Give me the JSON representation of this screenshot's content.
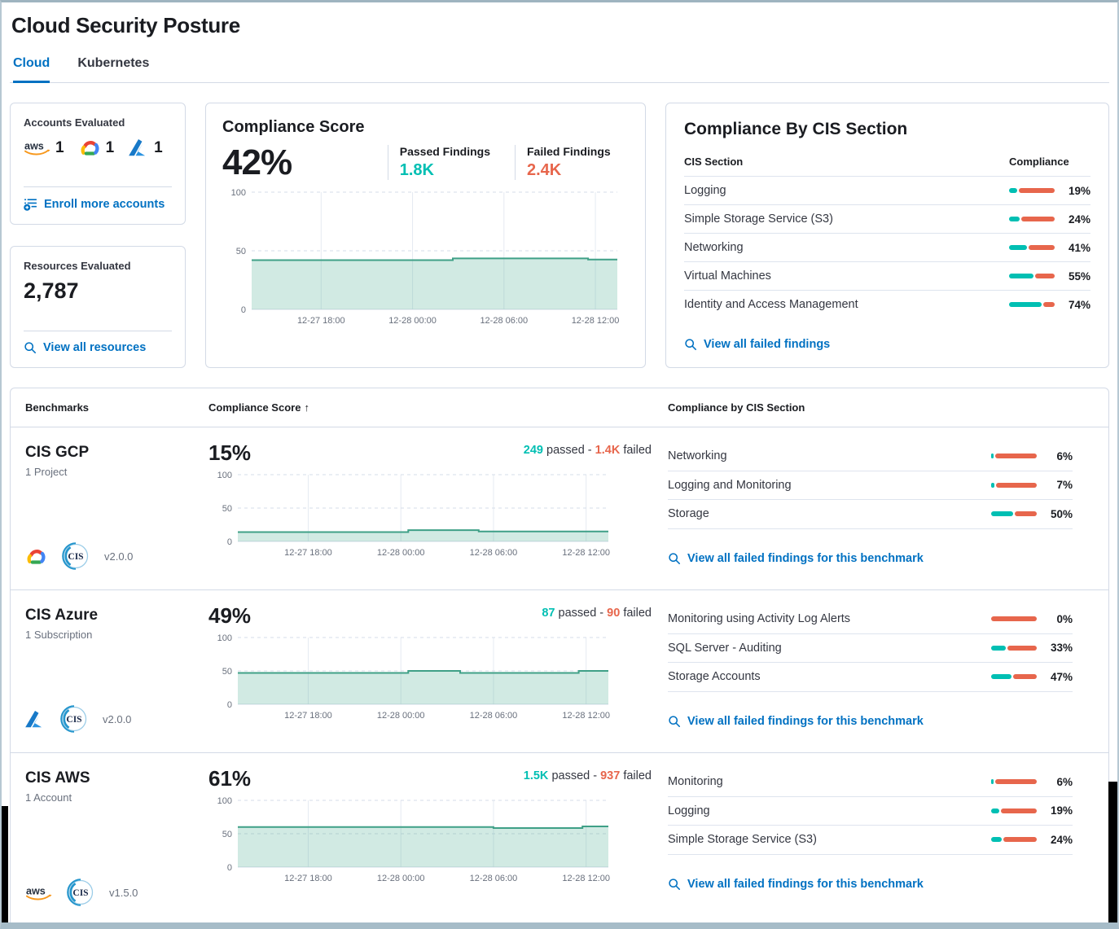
{
  "page": {
    "title": "Cloud Security Posture"
  },
  "tabs": {
    "cloud": "Cloud",
    "kubernetes": "Kubernetes"
  },
  "icons": {
    "enroll": "list-add-icon",
    "view": "search-icon",
    "sort": "arrow-up-icon",
    "providers": [
      "aws-icon",
      "gcp-icon",
      "azure-icon"
    ],
    "benchmark_logo": "cis-logo-icon"
  },
  "colors": {
    "passed_teal": "#00BFB3",
    "failed_red": "#E7664C",
    "link_blue": "#0071C2",
    "chart_line": "#3FA087",
    "chart_fill": "rgba(84,179,153,0.27)"
  },
  "accounts_card": {
    "title": "Accounts Evaluated",
    "aws_count": "1",
    "gcp_count": "1",
    "azure_count": "1",
    "enroll_link": "Enroll more accounts"
  },
  "resources_card": {
    "title": "Resources Evaluated",
    "count": "2,787",
    "view_link": "View all resources"
  },
  "score_card": {
    "title": "Compliance Score",
    "score": "42%",
    "passed_label": "Passed Findings",
    "passed_value": "1.8K",
    "failed_label": "Failed Findings",
    "failed_value": "2.4K"
  },
  "cis_card": {
    "title": "Compliance By CIS Section",
    "section_col": "CIS Section",
    "compliance_col": "Compliance",
    "rows": [
      {
        "name": "Logging",
        "pct": 19,
        "label": "19%"
      },
      {
        "name": "Simple Storage Service (S3)",
        "pct": 24,
        "label": "24%"
      },
      {
        "name": "Networking",
        "pct": 41,
        "label": "41%"
      },
      {
        "name": "Virtual Machines",
        "pct": 55,
        "label": "55%"
      },
      {
        "name": "Identity and Access Management",
        "pct": 74,
        "label": "74%"
      }
    ],
    "link": "View all failed findings"
  },
  "benchmarks_table": {
    "benchmarks_col": "Benchmarks",
    "score_col": "Compliance Score",
    "sort_arrow": "↑",
    "sections_col": "Compliance by CIS Section",
    "rows": [
      {
        "name": "CIS GCP",
        "subtitle": "1 Project",
        "provider_icon": "gcp-icon",
        "version": "v2.0.0",
        "score": "15%",
        "passed_value": "249",
        "passed_word": "passed -",
        "failed_value": "1.4K",
        "failed_word": "failed",
        "sections": [
          {
            "name": "Networking",
            "pct": 6,
            "label": "6%"
          },
          {
            "name": "Logging and Monitoring",
            "pct": 7,
            "label": "7%"
          },
          {
            "name": "Storage",
            "pct": 50,
            "label": "50%"
          }
        ],
        "link": "View all failed findings for this benchmark"
      },
      {
        "name": "CIS Azure",
        "subtitle": "1 Subscription",
        "provider_icon": "azure-icon",
        "version": "v2.0.0",
        "score": "49%",
        "passed_value": "87",
        "passed_word": "passed -",
        "failed_value": "90",
        "failed_word": "failed",
        "sections": [
          {
            "name": "Monitoring using Activity Log Alerts",
            "pct": 0,
            "label": "0%"
          },
          {
            "name": "SQL Server - Auditing",
            "pct": 33,
            "label": "33%"
          },
          {
            "name": "Storage Accounts",
            "pct": 47,
            "label": "47%"
          }
        ],
        "link": "View all failed findings for this benchmark"
      },
      {
        "name": "CIS AWS",
        "subtitle": "1 Account",
        "provider_icon": "aws-icon",
        "version": "v1.5.0",
        "score": "61%",
        "passed_value": "1.5K",
        "passed_word": "passed -",
        "failed_value": "937",
        "failed_word": "failed",
        "sections": [
          {
            "name": "Monitoring",
            "pct": 6,
            "label": "6%"
          },
          {
            "name": "Logging",
            "pct": 19,
            "label": "19%"
          },
          {
            "name": "Simple Storage Service (S3)",
            "pct": 24,
            "label": "24%"
          }
        ],
        "link": "View all failed findings for this benchmark"
      }
    ]
  },
  "chart_data": [
    {
      "id": "overview-compliance-trend",
      "type": "area",
      "title": "Compliance Score trend",
      "score_label": "42%",
      "x_ticks": [
        "12-27 18:00",
        "12-28 00:00",
        "12-28 06:00",
        "12-28 12:00"
      ],
      "tick_pos": [
        0.19,
        0.44,
        0.69,
        0.94
      ],
      "y_ticks": [
        0,
        50,
        100
      ],
      "ylim": [
        0,
        100
      ],
      "grid": true,
      "legend": false,
      "points": [
        [
          0,
          42
        ],
        [
          55,
          42
        ],
        [
          55,
          43.5
        ],
        [
          92,
          43.5
        ],
        [
          92,
          42.5
        ],
        [
          100,
          42.5
        ]
      ]
    },
    {
      "id": "cis-gcp-trend",
      "type": "area",
      "title": "CIS GCP compliance trend",
      "score_label": "15%",
      "x_ticks": [
        "12-27 18:00",
        "12-28 00:00",
        "12-28 06:00",
        "12-28 12:00"
      ],
      "tick_pos": [
        0.19,
        0.44,
        0.69,
        0.94
      ],
      "y_ticks": [
        0,
        50,
        100
      ],
      "ylim": [
        0,
        100
      ],
      "grid": true,
      "legend": false,
      "points": [
        [
          0,
          14
        ],
        [
          46,
          14
        ],
        [
          46,
          17
        ],
        [
          65,
          17
        ],
        [
          65,
          15
        ],
        [
          100,
          15
        ]
      ]
    },
    {
      "id": "cis-azure-trend",
      "type": "area",
      "title": "CIS Azure compliance trend",
      "score_label": "49%",
      "x_ticks": [
        "12-27 18:00",
        "12-28 00:00",
        "12-28 06:00",
        "12-28 12:00"
      ],
      "tick_pos": [
        0.19,
        0.44,
        0.69,
        0.94
      ],
      "y_ticks": [
        0,
        50,
        100
      ],
      "ylim": [
        0,
        100
      ],
      "grid": true,
      "legend": false,
      "points": [
        [
          0,
          47
        ],
        [
          46,
          47
        ],
        [
          46,
          50
        ],
        [
          60,
          50
        ],
        [
          60,
          47
        ],
        [
          92,
          47
        ],
        [
          92,
          50
        ],
        [
          100,
          50
        ]
      ]
    },
    {
      "id": "cis-aws-trend",
      "type": "area",
      "title": "CIS AWS compliance trend",
      "score_label": "61%",
      "x_ticks": [
        "12-27 18:00",
        "12-28 00:00",
        "12-28 06:00",
        "12-28 12:00"
      ],
      "tick_pos": [
        0.19,
        0.44,
        0.69,
        0.94
      ],
      "y_ticks": [
        0,
        50,
        100
      ],
      "ylim": [
        0,
        100
      ],
      "grid": true,
      "legend": false,
      "points": [
        [
          0,
          60
        ],
        [
          69,
          60
        ],
        [
          69,
          58.5
        ],
        [
          93,
          58.5
        ],
        [
          93,
          61
        ],
        [
          100,
          61
        ]
      ]
    }
  ]
}
